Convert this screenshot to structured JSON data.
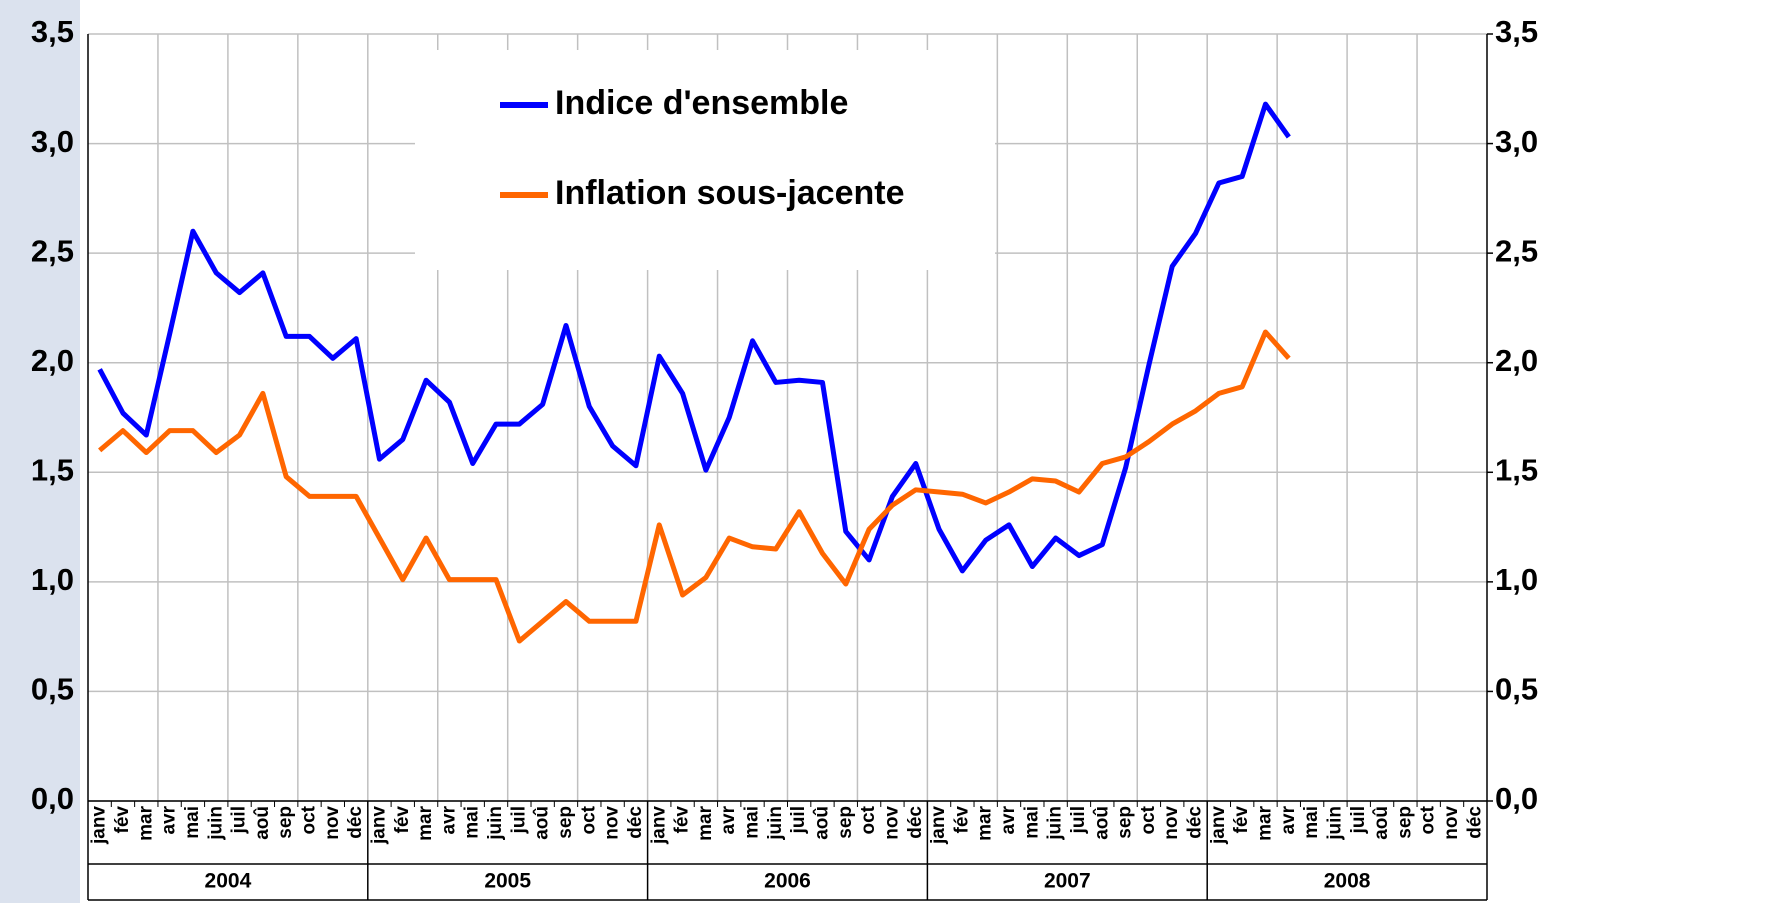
{
  "chart_data": {
    "type": "line",
    "categories": [
      "janv",
      "fév",
      "mar",
      "avr",
      "mai",
      "juin",
      "juil",
      "aoû",
      "sep",
      "oct",
      "nov",
      "déc",
      "janv",
      "fév",
      "mar",
      "avr",
      "mai",
      "juin",
      "juil",
      "aoû",
      "sep",
      "oct",
      "nov",
      "déc",
      "janv",
      "fév",
      "mar",
      "avr",
      "mai",
      "juin",
      "juil",
      "aoû",
      "sep",
      "oct",
      "nov",
      "déc",
      "janv",
      "fév",
      "mar",
      "avr",
      "mai",
      "juin",
      "juil",
      "aoû",
      "sep",
      "oct",
      "nov",
      "déc",
      "janv",
      "fév",
      "mar",
      "avr",
      "mai",
      "juin",
      "juil",
      "aoû",
      "sep",
      "oct",
      "nov",
      "déc"
    ],
    "year_labels": [
      "2004",
      "2005",
      "2006",
      "2007",
      "2008"
    ],
    "series": [
      {
        "name": "Indice d'ensemble",
        "color": "#0000ff",
        "values": [
          1.97,
          1.77,
          1.67,
          2.13,
          2.6,
          2.41,
          2.32,
          2.41,
          2.12,
          2.12,
          2.02,
          2.11,
          1.56,
          1.65,
          1.92,
          1.82,
          1.54,
          1.72,
          1.72,
          1.81,
          2.17,
          1.8,
          1.62,
          1.53,
          2.03,
          1.86,
          1.51,
          1.75,
          2.1,
          1.91,
          1.92,
          1.91,
          1.23,
          1.1,
          1.39,
          1.54,
          1.24,
          1.05,
          1.19,
          1.26,
          1.07,
          1.2,
          1.12,
          1.17,
          1.52,
          1.99,
          2.44,
          2.59,
          2.82,
          2.85,
          3.18,
          3.03,
          null,
          null,
          null,
          null,
          null,
          null,
          null,
          null
        ]
      },
      {
        "name": "Inflation sous-jacente",
        "color": "#ff6600",
        "values": [
          1.6,
          1.69,
          1.59,
          1.69,
          1.69,
          1.59,
          1.67,
          1.86,
          1.48,
          1.39,
          1.39,
          1.39,
          1.2,
          1.01,
          1.2,
          1.01,
          1.01,
          1.01,
          0.73,
          0.82,
          0.91,
          0.82,
          0.82,
          0.82,
          1.26,
          0.94,
          1.02,
          1.2,
          1.16,
          1.15,
          1.32,
          1.13,
          0.99,
          1.24,
          1.35,
          1.42,
          1.41,
          1.4,
          1.36,
          1.41,
          1.47,
          1.46,
          1.41,
          1.54,
          1.57,
          1.64,
          1.72,
          1.78,
          1.86,
          1.89,
          2.14,
          2.02,
          null,
          null,
          null,
          null,
          null,
          null,
          null,
          null
        ]
      }
    ],
    "ylim": [
      0,
      3.5
    ],
    "yticks": [
      {
        "value": 0,
        "label": "0,0"
      },
      {
        "value": 0.5,
        "label": "0,5"
      },
      {
        "value": 1,
        "label": "1,0"
      },
      {
        "value": 1.5,
        "label": "1,5"
      },
      {
        "value": 2,
        "label": "2,0"
      },
      {
        "value": 2.5,
        "label": "2,5"
      },
      {
        "value": 3,
        "label": "3,0"
      },
      {
        "value": 3.5,
        "label": "3,5"
      }
    ],
    "y2lim": [
      0,
      3.5
    ],
    "y2ticks": [
      {
        "value": 0,
        "label": "0,0"
      },
      {
        "value": 0.5,
        "label": "0,5"
      },
      {
        "value": 1,
        "label": "1,0"
      },
      {
        "value": 1.5,
        "label": "1,5"
      },
      {
        "value": 2,
        "label": "2,0"
      },
      {
        "value": 2.5,
        "label": "2,5"
      },
      {
        "value": 3,
        "label": "3,0"
      },
      {
        "value": 3.5,
        "label": "3,5"
      }
    ],
    "grid": true
  }
}
